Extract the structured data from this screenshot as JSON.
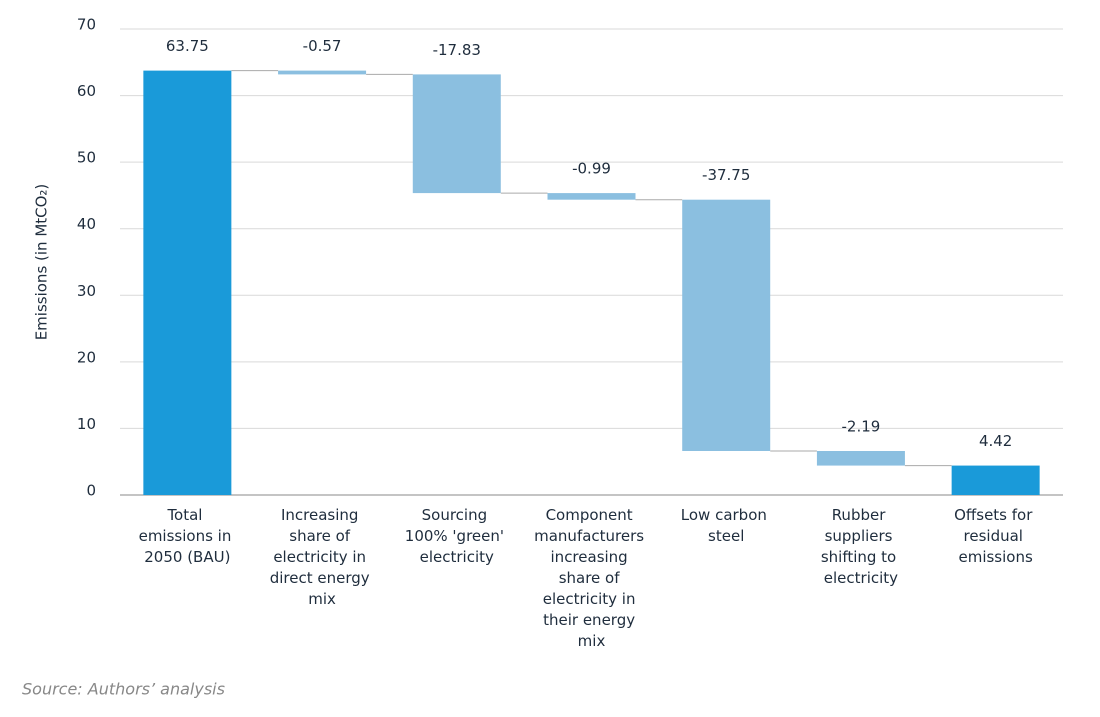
{
  "chart_data": {
    "type": "waterfall",
    "categories": [
      "Total emissions in 2050 (BAU)",
      "Increasing share of electricity in direct energy mix",
      "Sourcing 100% 'green' electricity",
      "Component manufacturers increasing share of electricity in their energy mix",
      "Low carbon steel",
      "Rubber suppliers shifting to electricity",
      "Offsets for residual emissions"
    ],
    "values": [
      63.75,
      -0.57,
      -17.83,
      -0.99,
      -37.75,
      -2.19,
      4.42
    ],
    "measure": [
      "total",
      "relative",
      "relative",
      "relative",
      "relative",
      "relative",
      "total"
    ],
    "total_color": "#1a9ad9",
    "change_color": "#8bbfe0",
    "ylabel": "Emissions (in MtCO₂)",
    "ylim": [
      0,
      70
    ],
    "yticks": [
      0,
      10,
      20,
      30,
      40,
      50,
      60,
      70
    ],
    "grid": true,
    "source": "Source: Authors’ analysis"
  }
}
